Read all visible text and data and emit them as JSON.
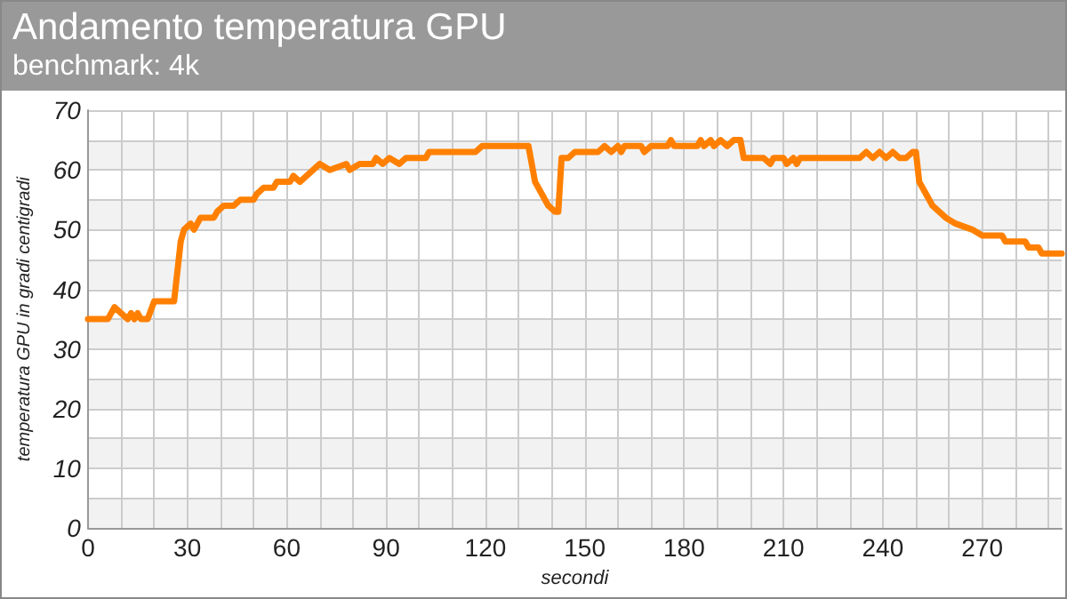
{
  "chart_data": {
    "type": "line",
    "title": "Andamento temperatura GPU",
    "subtitle": "benchmark: 4k",
    "xlabel": "secondi",
    "ylabel": "temperatura GPU in gradi centigradi",
    "x": [
      0,
      6,
      8,
      10,
      12,
      13,
      14,
      15,
      16,
      17,
      18,
      20,
      26,
      28,
      29,
      31,
      32,
      34,
      38,
      39,
      41,
      44,
      46,
      50,
      51,
      53,
      56,
      57,
      61,
      62,
      64,
      66,
      68,
      70,
      73,
      78,
      79,
      82,
      86,
      87,
      89,
      91,
      94,
      96,
      102,
      103,
      117,
      119,
      133,
      135,
      137,
      139,
      141,
      142,
      143,
      145,
      147,
      154,
      156,
      158,
      160,
      161,
      162,
      167,
      168,
      170,
      175,
      176,
      177,
      184,
      185,
      186,
      188,
      189,
      191,
      193,
      195,
      197,
      198,
      204,
      206,
      207,
      210,
      211,
      213,
      214,
      215,
      216,
      233,
      235,
      237,
      239,
      241,
      243,
      245,
      247,
      249,
      250,
      251,
      253,
      255,
      257,
      259,
      262,
      267,
      270,
      276,
      277,
      283,
      284,
      287,
      288,
      294
    ],
    "series": [
      {
        "color": "#ff8000",
        "values": [
          35,
          35,
          37,
          36,
          35,
          36,
          35,
          36,
          35,
          35,
          35,
          38,
          38,
          48,
          50,
          51,
          50,
          52,
          52,
          53,
          54,
          54,
          55,
          55,
          56,
          57,
          57,
          58,
          58,
          59,
          58,
          59,
          60,
          61,
          60,
          61,
          60,
          61,
          61,
          62,
          61,
          62,
          61,
          62,
          62,
          63,
          63,
          64,
          64,
          58,
          56,
          54,
          53,
          53,
          62,
          62,
          63,
          63,
          64,
          63,
          64,
          63,
          64,
          64,
          63,
          64,
          64,
          65,
          64,
          64,
          65,
          64,
          65,
          64,
          65,
          64,
          65,
          65,
          62,
          62,
          61,
          62,
          62,
          61,
          62,
          61,
          62,
          62,
          62,
          63,
          62,
          63,
          62,
          63,
          62,
          62,
          63,
          63,
          58,
          56,
          54,
          53,
          52,
          51,
          50,
          49,
          49,
          48,
          48,
          47,
          47,
          46,
          46
        ]
      }
    ],
    "xlim": [
      0,
      294
    ],
    "xticks": [
      0,
      {
        "value": 10,
        "label": null
      },
      {
        "value": 20,
        "label": null
      },
      30,
      {
        "value": 40,
        "label": null
      },
      {
        "value": 50,
        "label": null
      },
      60,
      {
        "value": 70,
        "label": null
      },
      {
        "value": 80,
        "label": null
      },
      90,
      {
        "value": 100,
        "label": null
      },
      {
        "value": 110,
        "label": null
      },
      120,
      {
        "value": 130,
        "label": null
      },
      {
        "value": 140,
        "label": null
      },
      150,
      {
        "value": 160,
        "label": null
      },
      {
        "value": 170,
        "label": null
      },
      180,
      {
        "value": 190,
        "label": null
      },
      {
        "value": 200,
        "label": null
      },
      210,
      {
        "value": 220,
        "label": null
      },
      {
        "value": 230,
        "label": null
      },
      240,
      {
        "value": 250,
        "label": null
      },
      {
        "value": 260,
        "label": null
      },
      270,
      {
        "value": 280,
        "label": null
      },
      {
        "value": 290,
        "label": null
      }
    ],
    "ylim": [
      0,
      70
    ],
    "yticks": [
      0,
      {
        "value": 5,
        "label": null
      },
      10,
      {
        "value": 15,
        "label": null
      },
      20,
      {
        "value": 25,
        "label": null
      },
      30,
      {
        "value": 35,
        "label": null
      },
      40,
      {
        "value": 45,
        "label": null
      },
      50,
      {
        "value": 55,
        "label": null
      },
      60,
      {
        "value": 65,
        "label": null
      },
      70
    ],
    "grid": true,
    "marker": "none",
    "line_style": "solid"
  }
}
